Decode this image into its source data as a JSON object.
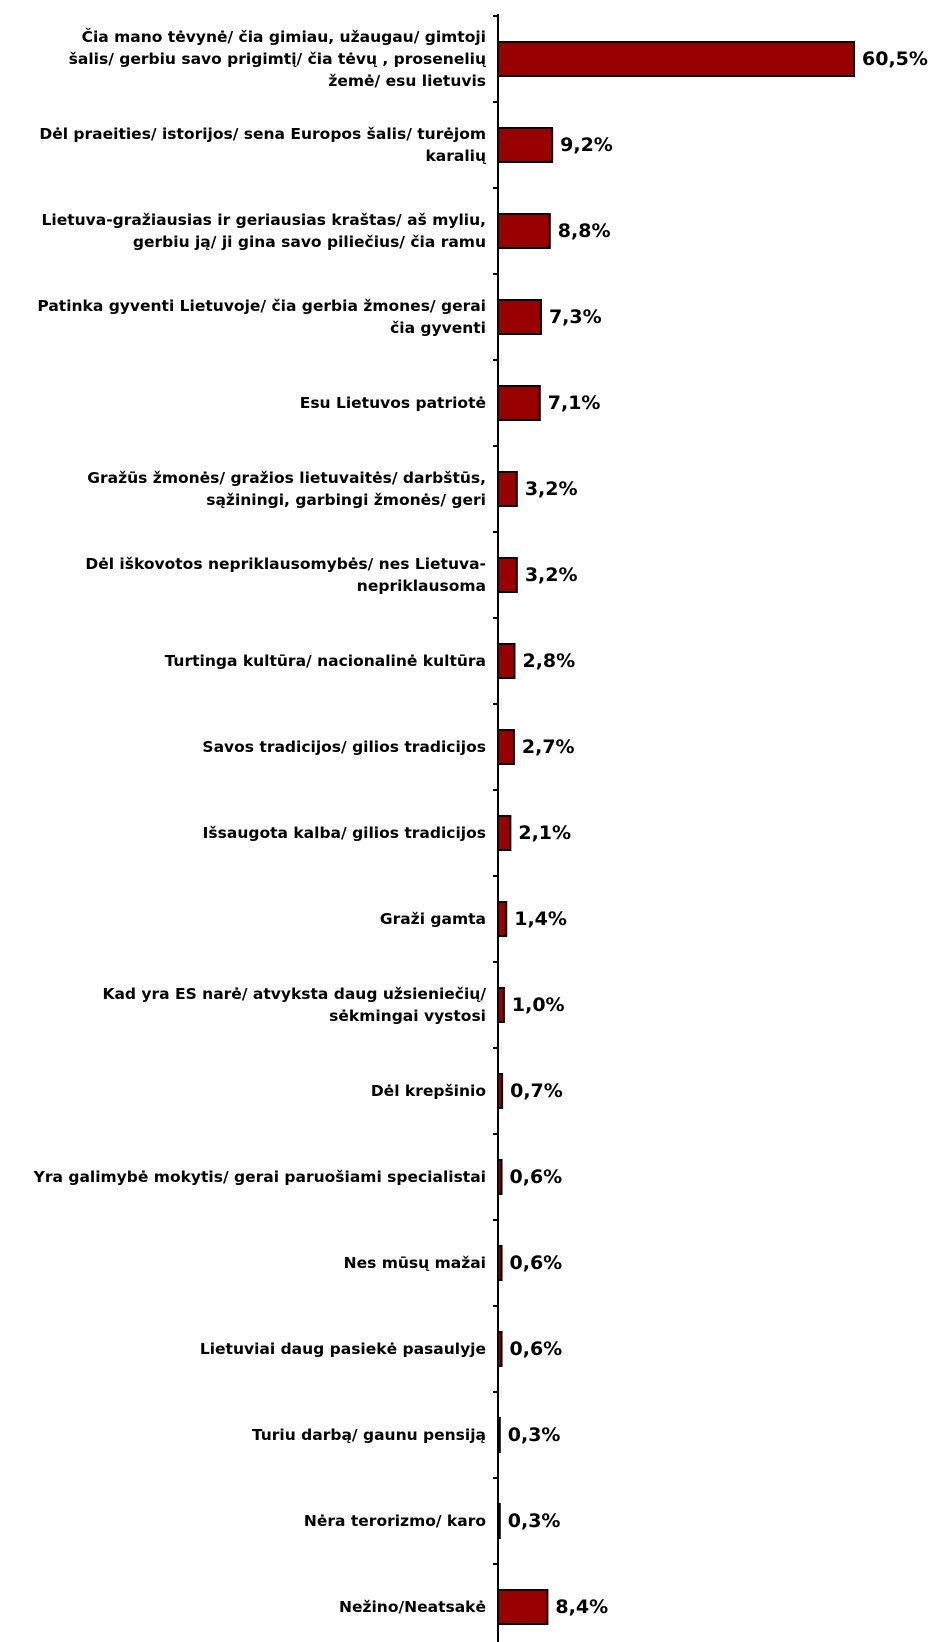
{
  "chart_data": {
    "type": "bar",
    "orientation": "horizontal",
    "title": "",
    "xlabel": "",
    "ylabel": "",
    "value_suffix": "%",
    "xlim": [
      0,
      60.5
    ],
    "grid": false,
    "legend": "none",
    "bar_color": "#990000",
    "bar_edge_color": "#000000",
    "categories": [
      [
        "Čia mano tėvynė/ čia gimiau, užaugau/ gimtoji",
        "šalis/ gerbiu savo prigimtį/ čia tėvų , prosenelių",
        "žemė/ esu lietuvis"
      ],
      [
        "Dėl praeities/ istorijos/ sena Europos šalis/ turėjom",
        "karalių"
      ],
      [
        "Lietuva-gražiausias ir geriausias kraštas/ aš myliu,",
        "gerbiu ją/ ji gina savo piliečius/ čia ramu"
      ],
      [
        "Patinka gyventi Lietuvoje/ čia gerbia žmones/ gerai",
        "čia gyventi"
      ],
      [
        "Esu Lietuvos patriotė"
      ],
      [
        "Gražūs žmonės/ gražios lietuvaitės/ darbštūs,",
        "sąžiningi, garbingi žmonės/ geri"
      ],
      [
        "Dėl iškovotos nepriklausomybės/ nes Lietuva-",
        "nepriklausoma"
      ],
      [
        "Turtinga kultūra/ nacionalinė kultūra"
      ],
      [
        "Savos tradicijos/ gilios tradicijos"
      ],
      [
        "Išsaugota kalba/ gilios tradicijos"
      ],
      [
        "Graži gamta"
      ],
      [
        "Kad yra ES narė/ atvyksta daug užsieniečių/",
        "sėkmingai vystosi"
      ],
      [
        "Dėl krepšinio"
      ],
      [
        "Yra galimybė mokytis/ gerai paruošiami specialistai"
      ],
      [
        "Nes mūsų mažai"
      ],
      [
        "Lietuviai daug pasiekė pasaulyje"
      ],
      [
        "Turiu darbą/ gaunu pensiją"
      ],
      [
        "Nėra terorizmo/ karo"
      ],
      [
        "Nežino/Neatsakė"
      ]
    ],
    "values": [
      60.5,
      9.2,
      8.8,
      7.3,
      7.1,
      3.2,
      3.2,
      2.8,
      2.7,
      2.1,
      1.4,
      1.0,
      0.7,
      0.6,
      0.6,
      0.6,
      0.3,
      0.3,
      8.4
    ],
    "value_labels": [
      "60,5%",
      "9,2%",
      "8,8%",
      "7,3%",
      "7,1%",
      "3,2%",
      "3,2%",
      "2,8%",
      "2,7%",
      "2,1%",
      "1,4%",
      "1,0%",
      "0,7%",
      "0,6%",
      "0,6%",
      "0,6%",
      "0,3%",
      "0,3%",
      "8,4%"
    ]
  }
}
